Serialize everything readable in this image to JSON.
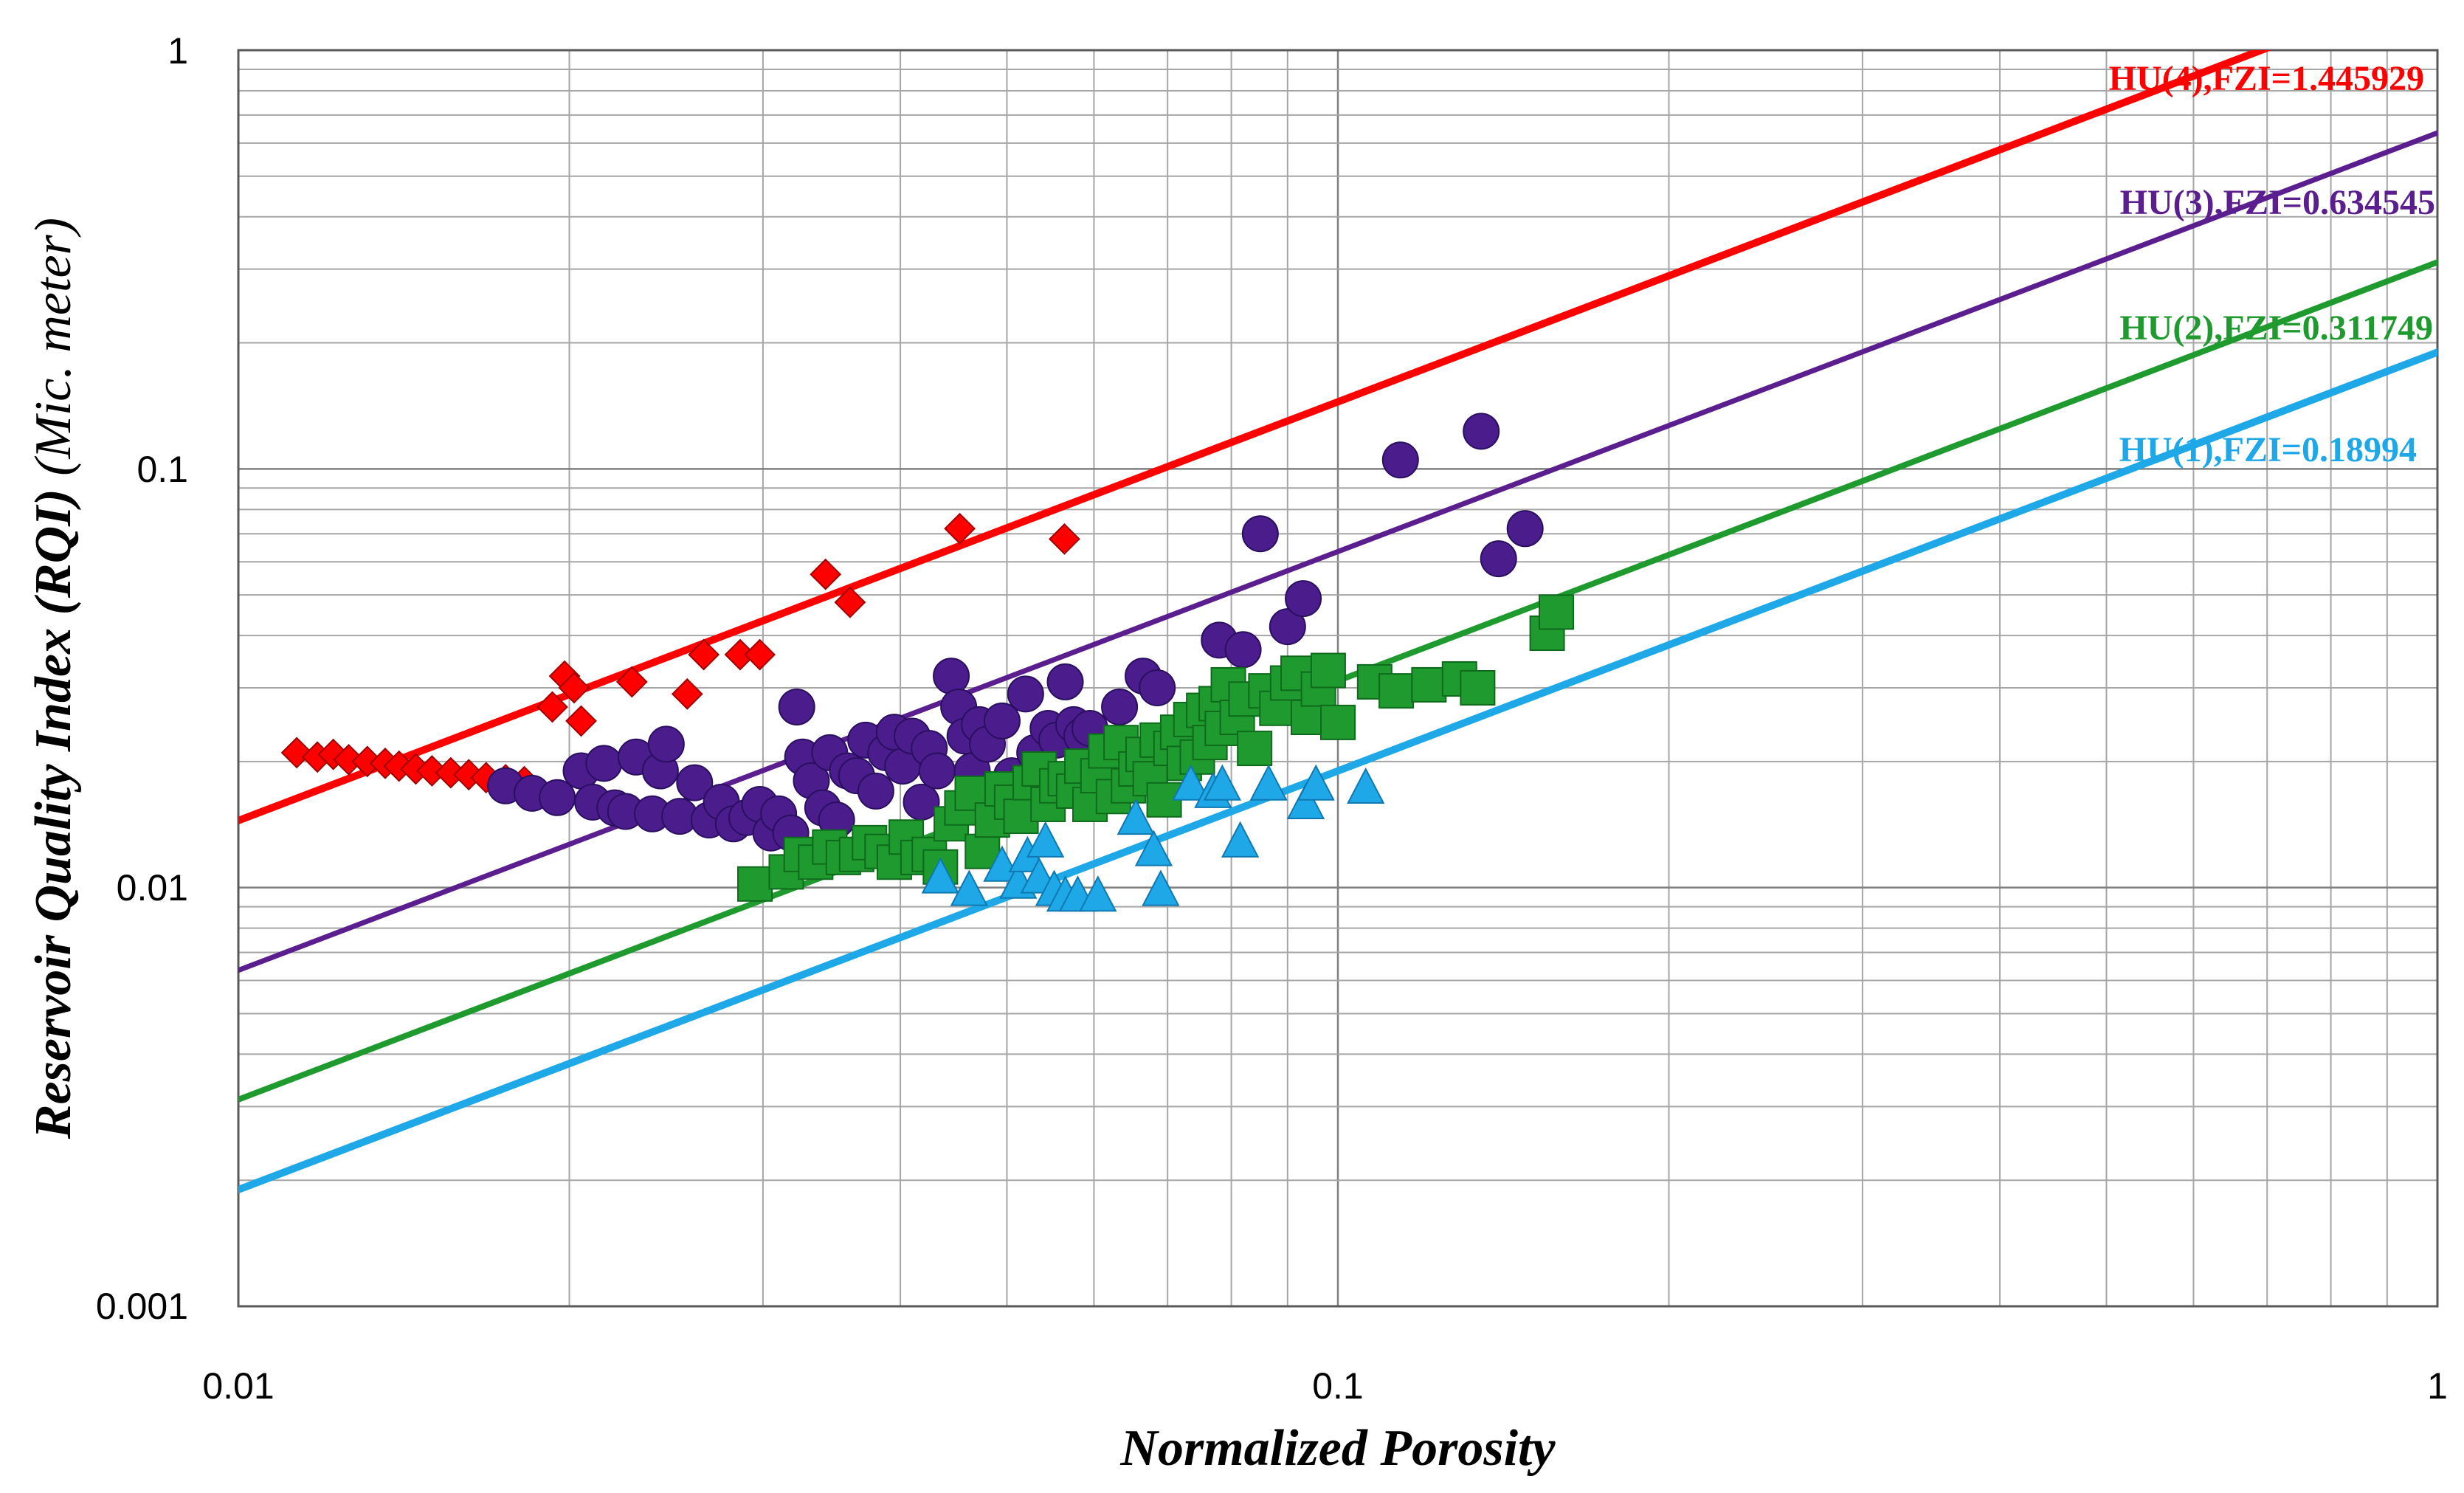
{
  "chart_data": {
    "type": "scatter",
    "xscale": "log",
    "yscale": "log",
    "xlim": [
      0.01,
      1
    ],
    "ylim": [
      0.001,
      1
    ],
    "xlabel": "Normalized Porosity",
    "ylabel": "Reservoir Quality Index (RQI)",
    "ylabel_unit": "(Mic. meter)",
    "x_tick_labels": [
      "0.01",
      "0.1",
      "1"
    ],
    "y_tick_labels": [
      "0.001",
      "0.01",
      "0.1",
      "1"
    ],
    "grid": true,
    "lines": [
      {
        "name": "HU(4)",
        "label": "HU(4),FZI=1.445929",
        "fzi": 1.445929,
        "color": "#ff0000"
      },
      {
        "name": "HU(3)",
        "label": "HU(3),FZI=0.634545",
        "fzi": 0.634545,
        "color": "#5b1e8f"
      },
      {
        "name": "HU(2)",
        "label": "HU(2),FZI=0.311749",
        "fzi": 0.311749,
        "color": "#1e9a2e"
      },
      {
        "name": "HU(1)",
        "label": "HU(1),FZI=0.18994",
        "fzi": 0.18994,
        "color": "#1ea8e8"
      }
    ],
    "series": [
      {
        "name": "HU(4)",
        "marker": "diamond",
        "color": "#ff0000",
        "points": [
          [
            0.0113,
            0.021
          ],
          [
            0.0118,
            0.0205
          ],
          [
            0.0122,
            0.0208
          ],
          [
            0.0126,
            0.0202
          ],
          [
            0.0131,
            0.02
          ],
          [
            0.0136,
            0.0198
          ],
          [
            0.014,
            0.0195
          ],
          [
            0.0145,
            0.0192
          ],
          [
            0.015,
            0.019
          ],
          [
            0.0156,
            0.0188
          ],
          [
            0.0162,
            0.0186
          ],
          [
            0.0168,
            0.0183
          ],
          [
            0.0175,
            0.0181
          ],
          [
            0.0182,
            0.0179
          ],
          [
            0.0193,
            0.027
          ],
          [
            0.0198,
            0.032
          ],
          [
            0.0202,
            0.03
          ],
          [
            0.0205,
            0.025
          ],
          [
            0.0228,
            0.031
          ],
          [
            0.0256,
            0.029
          ],
          [
            0.0265,
            0.036
          ],
          [
            0.0286,
            0.036
          ],
          [
            0.0298,
            0.036
          ],
          [
            0.0342,
            0.056
          ],
          [
            0.036,
            0.048
          ],
          [
            0.0453,
            0.072
          ],
          [
            0.0564,
            0.068
          ]
        ]
      },
      {
        "name": "HU(3)",
        "marker": "circle",
        "color": "#4b1c8c",
        "points": [
          [
            0.0175,
            0.0175
          ],
          [
            0.0185,
            0.0168
          ],
          [
            0.0195,
            0.0164
          ],
          [
            0.0205,
            0.019
          ],
          [
            0.021,
            0.016
          ],
          [
            0.0215,
            0.0198
          ],
          [
            0.022,
            0.0155
          ],
          [
            0.0225,
            0.0152
          ],
          [
            0.023,
            0.0205
          ],
          [
            0.0238,
            0.015
          ],
          [
            0.0242,
            0.019
          ],
          [
            0.0245,
            0.022
          ],
          [
            0.0252,
            0.0148
          ],
          [
            0.026,
            0.0178
          ],
          [
            0.0268,
            0.0145
          ],
          [
            0.0275,
            0.016
          ],
          [
            0.0282,
            0.0142
          ],
          [
            0.029,
            0.0147
          ],
          [
            0.0298,
            0.0158
          ],
          [
            0.0305,
            0.0135
          ],
          [
            0.031,
            0.015
          ],
          [
            0.0318,
            0.0135
          ],
          [
            0.0322,
            0.027
          ],
          [
            0.0326,
            0.0205
          ],
          [
            0.0332,
            0.018
          ],
          [
            0.034,
            0.0155
          ],
          [
            0.0345,
            0.021
          ],
          [
            0.035,
            0.0145
          ],
          [
            0.0358,
            0.019
          ],
          [
            0.0365,
            0.0185
          ],
          [
            0.0372,
            0.0225
          ],
          [
            0.038,
            0.017
          ],
          [
            0.0388,
            0.021
          ],
          [
            0.0395,
            0.0235
          ],
          [
            0.0402,
            0.0195
          ],
          [
            0.041,
            0.023
          ],
          [
            0.0418,
            0.016
          ],
          [
            0.0425,
            0.0215
          ],
          [
            0.0432,
            0.019
          ],
          [
            0.0445,
            0.032
          ],
          [
            0.0452,
            0.027
          ],
          [
            0.0458,
            0.023
          ],
          [
            0.0465,
            0.019
          ],
          [
            0.0472,
            0.0245
          ],
          [
            0.048,
            0.022
          ],
          [
            0.0495,
            0.025
          ],
          [
            0.0505,
            0.0185
          ],
          [
            0.052,
            0.029
          ],
          [
            0.053,
            0.021
          ],
          [
            0.0545,
            0.024
          ],
          [
            0.0555,
            0.0225
          ],
          [
            0.0565,
            0.031
          ],
          [
            0.0575,
            0.0245
          ],
          [
            0.0585,
            0.023
          ],
          [
            0.0595,
            0.024
          ],
          [
            0.0633,
            0.027
          ],
          [
            0.0665,
            0.032
          ],
          [
            0.0685,
            0.03
          ],
          [
            0.078,
            0.039
          ],
          [
            0.082,
            0.037
          ],
          [
            0.085,
            0.07
          ],
          [
            0.09,
            0.042
          ],
          [
            0.093,
            0.049
          ],
          [
            0.114,
            0.105
          ],
          [
            0.135,
            0.123
          ],
          [
            0.14,
            0.061
          ],
          [
            0.148,
            0.072
          ]
        ]
      },
      {
        "name": "HU(2)",
        "marker": "square",
        "color": "#1e9a2e",
        "points": [
          [
            0.0295,
            0.0102
          ],
          [
            0.0315,
            0.0109
          ],
          [
            0.0325,
            0.012
          ],
          [
            0.0335,
            0.0115
          ],
          [
            0.0345,
            0.0125
          ],
          [
            0.0355,
            0.0118
          ],
          [
            0.0365,
            0.012
          ],
          [
            0.0375,
            0.0128
          ],
          [
            0.0385,
            0.0122
          ],
          [
            0.0395,
            0.0115
          ],
          [
            0.0405,
            0.0132
          ],
          [
            0.0415,
            0.0118
          ],
          [
            0.0425,
            0.012
          ],
          [
            0.0435,
            0.0112
          ],
          [
            0.0445,
            0.0142
          ],
          [
            0.0455,
            0.0155
          ],
          [
            0.0465,
            0.0168
          ],
          [
            0.0475,
            0.0122
          ],
          [
            0.0485,
            0.0145
          ],
          [
            0.0495,
            0.0172
          ],
          [
            0.0505,
            0.016
          ],
          [
            0.0515,
            0.0148
          ],
          [
            0.0525,
            0.0178
          ],
          [
            0.0535,
            0.0192
          ],
          [
            0.0545,
            0.0158
          ],
          [
            0.0555,
            0.0175
          ],
          [
            0.0565,
            0.0182
          ],
          [
            0.0575,
            0.017
          ],
          [
            0.0585,
            0.0195
          ],
          [
            0.0595,
            0.0158
          ],
          [
            0.0605,
            0.0185
          ],
          [
            0.0615,
            0.0212
          ],
          [
            0.0625,
            0.0165
          ],
          [
            0.0635,
            0.0222
          ],
          [
            0.0645,
            0.0175
          ],
          [
            0.0655,
            0.0192
          ],
          [
            0.0665,
            0.0208
          ],
          [
            0.0675,
            0.0182
          ],
          [
            0.0685,
            0.0225
          ],
          [
            0.0695,
            0.0162
          ],
          [
            0.0705,
            0.0215
          ],
          [
            0.0715,
            0.0235
          ],
          [
            0.0725,
            0.0198
          ],
          [
            0.0735,
            0.0252
          ],
          [
            0.0745,
            0.0205
          ],
          [
            0.0755,
            0.0265
          ],
          [
            0.0765,
            0.0222
          ],
          [
            0.0775,
            0.0275
          ],
          [
            0.0785,
            0.024
          ],
          [
            0.0795,
            0.0305
          ],
          [
            0.081,
            0.0255
          ],
          [
            0.0825,
            0.0282
          ],
          [
            0.084,
            0.0215
          ],
          [
            0.086,
            0.0295
          ],
          [
            0.088,
            0.0268
          ],
          [
            0.09,
            0.0308
          ],
          [
            0.092,
            0.0325
          ],
          [
            0.094,
            0.0255
          ],
          [
            0.096,
            0.0298
          ],
          [
            0.098,
            0.033
          ],
          [
            0.1,
            0.0248
          ],
          [
            0.108,
            0.031
          ],
          [
            0.113,
            0.0295
          ],
          [
            0.121,
            0.0305
          ],
          [
            0.129,
            0.0315
          ],
          [
            0.134,
            0.03
          ],
          [
            0.155,
            0.0405
          ],
          [
            0.158,
            0.0455
          ]
        ]
      },
      {
        "name": "HU(1)",
        "marker": "triangle",
        "color": "#1ea8e8",
        "points": [
          [
            0.0435,
            0.0105
          ],
          [
            0.0462,
            0.0098
          ],
          [
            0.0495,
            0.0112
          ],
          [
            0.0512,
            0.0102
          ],
          [
            0.0522,
            0.0118
          ],
          [
            0.0535,
            0.0105
          ],
          [
            0.0542,
            0.0128
          ],
          [
            0.0552,
            0.0098
          ],
          [
            0.0565,
            0.0095
          ],
          [
            0.058,
            0.0095
          ],
          [
            0.0605,
            0.0095
          ],
          [
            0.0655,
            0.0145
          ],
          [
            0.068,
            0.0122
          ],
          [
            0.069,
            0.0098
          ],
          [
            0.0735,
            0.0175
          ],
          [
            0.077,
            0.0168
          ],
          [
            0.0785,
            0.0175
          ],
          [
            0.0815,
            0.0128
          ],
          [
            0.0865,
            0.0175
          ],
          [
            0.0935,
            0.0158
          ],
          [
            0.0955,
            0.0175
          ],
          [
            0.106,
            0.0172
          ]
        ]
      }
    ]
  }
}
